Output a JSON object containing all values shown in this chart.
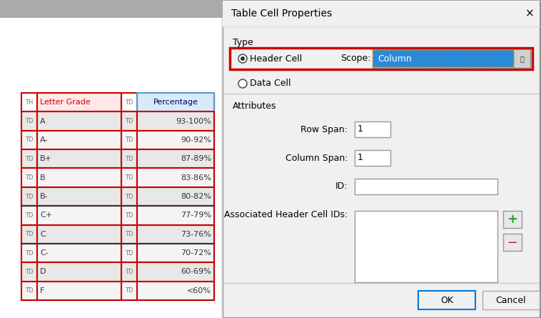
{
  "bg_color": "#c0c0c0",
  "page_bg": "#ffffff",
  "dialog_bg": "#f0f0f0",
  "title_text": "Table Cell Properties",
  "close_x": "×",
  "type_label": "Type",
  "header_cell_label": "Header Cell",
  "scope_label": "Scope:",
  "scope_value": "Column",
  "data_cell_label": "Data Cell",
  "attributes_label": "Attributes",
  "row_span_label": "Row Span:",
  "row_span_value": "1",
  "col_span_label": "Column Span:",
  "col_span_value": "1",
  "id_label": "ID:",
  "assoc_label": "Associated Header Cell IDs:",
  "ok_label": "OK",
  "cancel_label": "Cancel",
  "table_rows": [
    [
      "TH",
      "Letter Grade",
      "TD",
      "Percentage"
    ],
    [
      "TD",
      "A",
      "TD",
      "93-100%"
    ],
    [
      "TD",
      "A-",
      "TD",
      "90-92%"
    ],
    [
      "TD",
      "B+",
      "TD",
      "87-89%"
    ],
    [
      "TD",
      "B",
      "TD",
      "83-86%"
    ],
    [
      "TD",
      "B-",
      "TD",
      "80-82%"
    ],
    [
      "TD",
      "C+",
      "TD",
      "77-79%"
    ],
    [
      "TD",
      "C",
      "TD",
      "73-76%"
    ],
    [
      "TD",
      "C-",
      "TD",
      "70-72%"
    ],
    [
      "TD",
      "D",
      "TD",
      "60-69%"
    ],
    [
      "TD",
      "F",
      "TD",
      "<60%"
    ]
  ],
  "red_border": "#cc0000",
  "blue_scope_bg": "#2b8ad8",
  "green_plus": "#22aa22",
  "red_minus": "#cc2222",
  "button_border": "#0078d7",
  "header_row_bg": "#ffe8e8",
  "header_col4_bg": "#d8eaf8",
  "odd_row_bg": "#e8e8e8",
  "even_row_bg": "#f4f4f4"
}
